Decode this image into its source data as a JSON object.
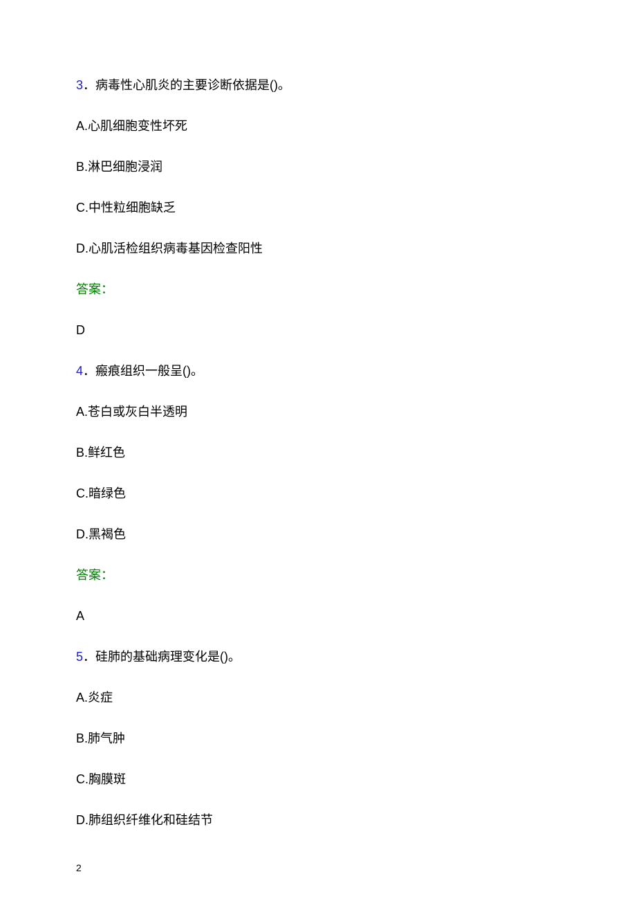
{
  "page": {
    "number": "2",
    "background_color": "#ffffff",
    "text_color": "#000000",
    "question_number_color": "#2020d0",
    "answer_label_color": "#008000",
    "font_size_body": 18,
    "font_size_page_number": 14
  },
  "questions": [
    {
      "number": "3",
      "separator": "．",
      "text": "病毒性心肌炎的主要诊断依据是()。",
      "options": [
        "A.心肌细胞变性坏死",
        "B.淋巴细胞浸润",
        "C.中性粒细胞缺乏",
        "D.心肌活检组织病毒基因检查阳性"
      ],
      "answer_label": "答案：",
      "answer_value": "D"
    },
    {
      "number": "4",
      "separator": "．",
      "text": "瘢痕组织一般呈()。",
      "options": [
        "A.苍白或灰白半透明",
        "B.鲜红色",
        "C.暗绿色",
        "D.黑褐色"
      ],
      "answer_label": "答案：",
      "answer_value": "A"
    },
    {
      "number": "5",
      "separator": "．",
      "text": "硅肺的基础病理变化是()。",
      "options": [
        "A.炎症",
        "B.肺气肿",
        "C.胸膜斑",
        "D.肺组织纤维化和硅结节"
      ],
      "answer_label": "",
      "answer_value": ""
    }
  ]
}
